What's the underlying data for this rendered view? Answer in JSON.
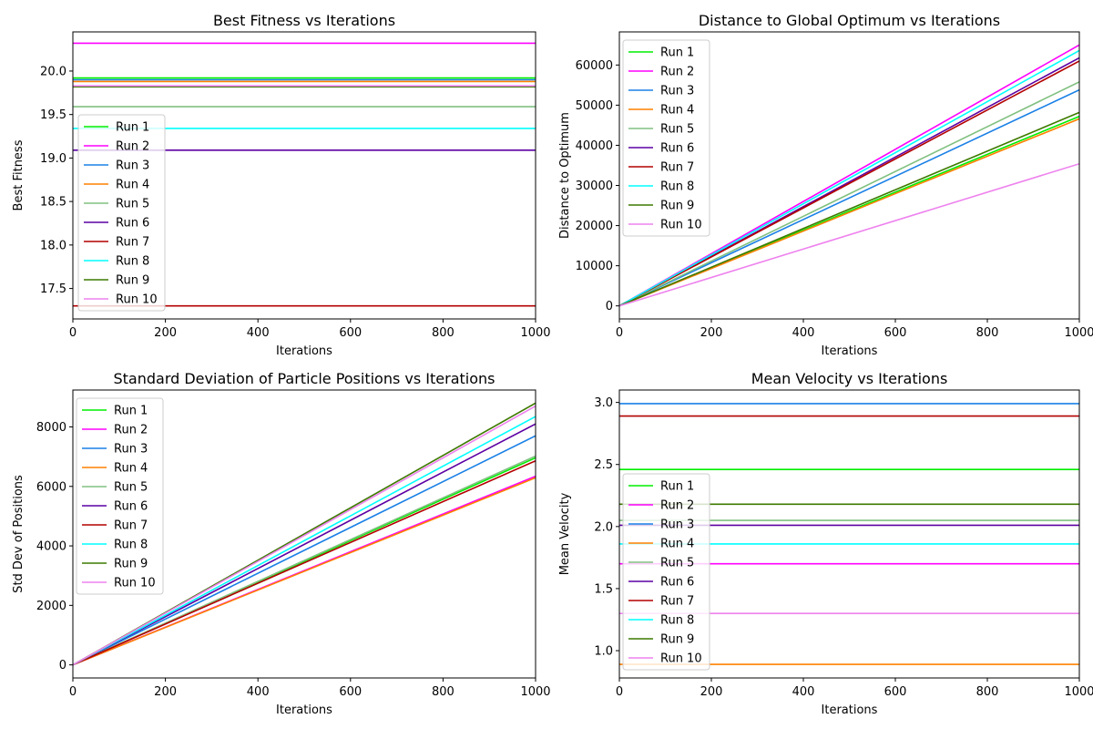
{
  "chart_data": [
    {
      "type": "line",
      "title": "Best Fitness vs Iterations",
      "xlabel": "Iterations",
      "ylabel": "Best Fitness",
      "xlim": [
        0,
        1000
      ],
      "ylim": [
        17.15,
        20.45
      ],
      "xticks": [
        0,
        200,
        400,
        600,
        800,
        1000
      ],
      "yticks": [
        17.5,
        18.0,
        18.5,
        19.0,
        19.5,
        20.0
      ],
      "ytick_format": 1,
      "legend": "center-left",
      "grid": false,
      "series": [
        {
          "name": "Run 1",
          "color": "#00ee00",
          "x": [
            0,
            1000
          ],
          "y": [
            19.92,
            19.92
          ]
        },
        {
          "name": "Run 2",
          "color": "#ff00ff",
          "x": [
            0,
            1000
          ],
          "y": [
            20.32,
            20.32
          ]
        },
        {
          "name": "Run 3",
          "color": "#1a80e6",
          "x": [
            0,
            1000
          ],
          "y": [
            19.9,
            19.9
          ]
        },
        {
          "name": "Run 4",
          "color": "#ff8000",
          "x": [
            0,
            1000
          ],
          "y": [
            19.88,
            19.88
          ]
        },
        {
          "name": "Run 5",
          "color": "#80c080",
          "x": [
            0,
            1000
          ],
          "y": [
            19.59,
            19.59
          ]
        },
        {
          "name": "Run 6",
          "color": "#5c00a3",
          "x": [
            0,
            1000
          ],
          "y": [
            19.09,
            19.09
          ]
        },
        {
          "name": "Run 7",
          "color": "#b30000",
          "x": [
            0,
            1000
          ],
          "y": [
            17.3,
            17.3
          ]
        },
        {
          "name": "Run 8",
          "color": "#00ffff",
          "x": [
            0,
            1000
          ],
          "y": [
            19.34,
            19.34
          ]
        },
        {
          "name": "Run 9",
          "color": "#3d7a00",
          "x": [
            0,
            1000
          ],
          "y": [
            19.82,
            19.82
          ]
        },
        {
          "name": "Run 10",
          "color": "#ee82ee",
          "x": [
            0,
            1000
          ],
          "y": [
            19.83,
            19.83
          ]
        }
      ]
    },
    {
      "type": "line",
      "title": "Distance to Global Optimum vs Iterations",
      "xlabel": "Iterations",
      "ylabel": "Distance to Optimum",
      "xlim": [
        0,
        1000
      ],
      "ylim": [
        -3250,
        68250
      ],
      "xticks": [
        0,
        200,
        400,
        600,
        800,
        1000
      ],
      "yticks": [
        0,
        10000,
        20000,
        30000,
        40000,
        50000,
        60000
      ],
      "ytick_format": 0,
      "legend": "upper-left",
      "grid": false,
      "series": [
        {
          "name": "Run 1",
          "color": "#00ee00",
          "x": [
            0,
            1000
          ],
          "y": [
            0,
            47200
          ]
        },
        {
          "name": "Run 2",
          "color": "#ff00ff",
          "x": [
            0,
            1000
          ],
          "y": [
            0,
            65000
          ]
        },
        {
          "name": "Run 3",
          "color": "#1a80e6",
          "x": [
            0,
            1000
          ],
          "y": [
            0,
            53800
          ]
        },
        {
          "name": "Run 4",
          "color": "#ff8000",
          "x": [
            0,
            1000
          ],
          "y": [
            0,
            46600
          ]
        },
        {
          "name": "Run 5",
          "color": "#80c080",
          "x": [
            0,
            1000
          ],
          "y": [
            0,
            55800
          ]
        },
        {
          "name": "Run 6",
          "color": "#5c00a3",
          "x": [
            0,
            1000
          ],
          "y": [
            0,
            61800
          ]
        },
        {
          "name": "Run 7",
          "color": "#b30000",
          "x": [
            0,
            1000
          ],
          "y": [
            0,
            61000
          ]
        },
        {
          "name": "Run 8",
          "color": "#00ffff",
          "x": [
            0,
            1000
          ],
          "y": [
            0,
            63600
          ]
        },
        {
          "name": "Run 9",
          "color": "#3d7a00",
          "x": [
            0,
            1000
          ],
          "y": [
            0,
            48200
          ]
        },
        {
          "name": "Run 10",
          "color": "#ee82ee",
          "x": [
            0,
            1000
          ],
          "y": [
            0,
            35400
          ]
        }
      ]
    },
    {
      "type": "line",
      "title": "Standard Deviation of Particle Positions vs Iterations",
      "xlabel": "Iterations",
      "ylabel": "Std Dev of Positions",
      "xlim": [
        0,
        1000
      ],
      "ylim": [
        -440,
        9240
      ],
      "xticks": [
        0,
        200,
        400,
        600,
        800,
        1000
      ],
      "yticks": [
        0,
        2000,
        4000,
        6000,
        8000
      ],
      "ytick_format": 0,
      "legend": "upper-left",
      "grid": false,
      "series": [
        {
          "name": "Run 1",
          "color": "#00ee00",
          "x": [
            0,
            1000
          ],
          "y": [
            0,
            6960
          ]
        },
        {
          "name": "Run 2",
          "color": "#ff00ff",
          "x": [
            0,
            1000
          ],
          "y": [
            0,
            6340
          ]
        },
        {
          "name": "Run 3",
          "color": "#1a80e6",
          "x": [
            0,
            1000
          ],
          "y": [
            0,
            7700
          ]
        },
        {
          "name": "Run 4",
          "color": "#ff8000",
          "x": [
            0,
            1000
          ],
          "y": [
            0,
            6290
          ]
        },
        {
          "name": "Run 5",
          "color": "#80c080",
          "x": [
            0,
            1000
          ],
          "y": [
            0,
            7020
          ]
        },
        {
          "name": "Run 6",
          "color": "#5c00a3",
          "x": [
            0,
            1000
          ],
          "y": [
            0,
            8100
          ]
        },
        {
          "name": "Run 7",
          "color": "#b30000",
          "x": [
            0,
            1000
          ],
          "y": [
            0,
            6860
          ]
        },
        {
          "name": "Run 8",
          "color": "#00ffff",
          "x": [
            0,
            1000
          ],
          "y": [
            0,
            8350
          ]
        },
        {
          "name": "Run 9",
          "color": "#3d7a00",
          "x": [
            0,
            1000
          ],
          "y": [
            0,
            8800
          ]
        },
        {
          "name": "Run 10",
          "color": "#ee82ee",
          "x": [
            0,
            1000
          ],
          "y": [
            0,
            8700
          ]
        }
      ]
    },
    {
      "type": "line",
      "title": "Mean Velocity vs Iterations",
      "xlabel": "Iterations",
      "ylabel": "Mean Velocity",
      "xlim": [
        0,
        1000
      ],
      "ylim": [
        0.78,
        3.1
      ],
      "xticks": [
        0,
        200,
        400,
        600,
        800,
        1000
      ],
      "yticks": [
        1.0,
        1.5,
        2.0,
        2.5,
        3.0
      ],
      "ytick_format": 1,
      "legend": "lower-left",
      "grid": false,
      "series": [
        {
          "name": "Run 1",
          "color": "#00ee00",
          "x": [
            0,
            1000
          ],
          "y": [
            2.46,
            2.46
          ]
        },
        {
          "name": "Run 2",
          "color": "#ff00ff",
          "x": [
            0,
            1000
          ],
          "y": [
            1.7,
            1.7
          ]
        },
        {
          "name": "Run 3",
          "color": "#1a80e6",
          "x": [
            0,
            1000
          ],
          "y": [
            2.99,
            2.99
          ]
        },
        {
          "name": "Run 4",
          "color": "#ff8000",
          "x": [
            0,
            1000
          ],
          "y": [
            0.89,
            0.89
          ]
        },
        {
          "name": "Run 5",
          "color": "#80c080",
          "x": [
            0,
            1000
          ],
          "y": [
            2.05,
            2.05
          ]
        },
        {
          "name": "Run 6",
          "color": "#5c00a3",
          "x": [
            0,
            1000
          ],
          "y": [
            2.01,
            2.01
          ]
        },
        {
          "name": "Run 7",
          "color": "#b30000",
          "x": [
            0,
            1000
          ],
          "y": [
            2.89,
            2.89
          ]
        },
        {
          "name": "Run 8",
          "color": "#00ffff",
          "x": [
            0,
            1000
          ],
          "y": [
            1.86,
            1.86
          ]
        },
        {
          "name": "Run 9",
          "color": "#3d7a00",
          "x": [
            0,
            1000
          ],
          "y": [
            2.18,
            2.18
          ]
        },
        {
          "name": "Run 10",
          "color": "#ee82ee",
          "x": [
            0,
            1000
          ],
          "y": [
            1.3,
            1.3
          ]
        }
      ]
    }
  ]
}
